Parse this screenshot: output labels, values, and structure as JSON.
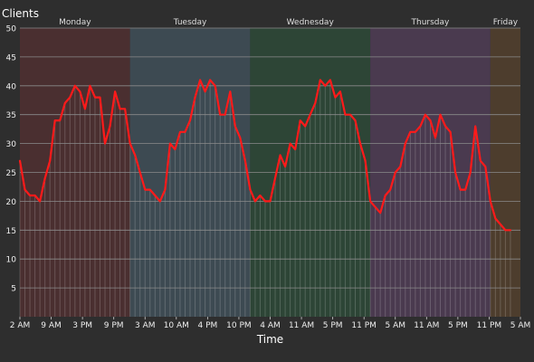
{
  "chart_data": {
    "type": "line",
    "title": "",
    "ylabel": "Clients",
    "xlabel": "Time",
    "ylim": [
      0,
      50
    ],
    "yticks": [
      5,
      10,
      15,
      20,
      25,
      30,
      35,
      40,
      45,
      50
    ],
    "x_tick_step_hours": 7,
    "x_tick_labels": [
      "2 AM",
      "9 AM",
      "3 PM",
      "9 PM",
      "3 AM",
      "10 AM",
      "4 PM",
      "10 PM",
      "4 AM",
      "11 AM",
      "5 PM",
      "11 PM",
      "5 AM",
      "11 AM",
      "5 PM",
      "11 PM",
      "5 AM"
    ],
    "grid": true,
    "days": [
      {
        "label": "Monday",
        "start": 0,
        "end": 22,
        "color": "#4a2f30"
      },
      {
        "label": "Tuesday",
        "start": 22,
        "end": 46,
        "color": "#3d4a52"
      },
      {
        "label": "Wednesday",
        "start": 46,
        "end": 70,
        "color": "#2d4536"
      },
      {
        "label": "Thursday",
        "start": 70,
        "end": 94,
        "color": "#4a3a4f"
      },
      {
        "label": "Friday",
        "start": 94,
        "end": 100,
        "color": "#4d3d2d"
      }
    ],
    "series": [
      {
        "color": "#ff1a1a",
        "points": [
          [
            0,
            27
          ],
          [
            1,
            22
          ],
          [
            2,
            21
          ],
          [
            3,
            21
          ],
          [
            4,
            20
          ],
          [
            5,
            24
          ],
          [
            6,
            27
          ],
          [
            7,
            34
          ],
          [
            8,
            34
          ],
          [
            9,
            37
          ],
          [
            10,
            38
          ],
          [
            11,
            40
          ],
          [
            12,
            39
          ],
          [
            13,
            36
          ],
          [
            14,
            40
          ],
          [
            15,
            38
          ],
          [
            16,
            38
          ],
          [
            17,
            30
          ],
          [
            18,
            33
          ],
          [
            19,
            39
          ],
          [
            20,
            36
          ],
          [
            21,
            36
          ],
          [
            22,
            30
          ],
          [
            23,
            28
          ],
          [
            24,
            25
          ],
          [
            25,
            22
          ],
          [
            26,
            22
          ],
          [
            27,
            21
          ],
          [
            28,
            20
          ],
          [
            29,
            22
          ],
          [
            30,
            30
          ],
          [
            31,
            29
          ],
          [
            32,
            32
          ],
          [
            33,
            32
          ],
          [
            34,
            34
          ],
          [
            35,
            38
          ],
          [
            36,
            41
          ],
          [
            37,
            39
          ],
          [
            38,
            41
          ],
          [
            39,
            40
          ],
          [
            40,
            35
          ],
          [
            41,
            35
          ],
          [
            42,
            39
          ],
          [
            43,
            33
          ],
          [
            44,
            31
          ],
          [
            45,
            27
          ],
          [
            46,
            22
          ],
          [
            47,
            20
          ],
          [
            48,
            21
          ],
          [
            49,
            20
          ],
          [
            50,
            20
          ],
          [
            51,
            24
          ],
          [
            52,
            28
          ],
          [
            53,
            26
          ],
          [
            54,
            30
          ],
          [
            55,
            29
          ],
          [
            56,
            34
          ],
          [
            57,
            33
          ],
          [
            58,
            35
          ],
          [
            59,
            37
          ],
          [
            60,
            41
          ],
          [
            61,
            40
          ],
          [
            62,
            41
          ],
          [
            63,
            38
          ],
          [
            64,
            39
          ],
          [
            65,
            35
          ],
          [
            66,
            35
          ],
          [
            67,
            34
          ],
          [
            68,
            30
          ],
          [
            69,
            27
          ],
          [
            70,
            20
          ],
          [
            71,
            19
          ],
          [
            72,
            18
          ],
          [
            73,
            21
          ],
          [
            74,
            22
          ],
          [
            75,
            25
          ],
          [
            76,
            26
          ],
          [
            77,
            30
          ],
          [
            78,
            32
          ],
          [
            79,
            32
          ],
          [
            80,
            33
          ],
          [
            81,
            35
          ],
          [
            82,
            34
          ],
          [
            83,
            31
          ],
          [
            84,
            35
          ],
          [
            85,
            33
          ],
          [
            86,
            32
          ],
          [
            87,
            25
          ],
          [
            88,
            22
          ],
          [
            89,
            22
          ],
          [
            90,
            25
          ],
          [
            91,
            33
          ],
          [
            92,
            27
          ],
          [
            93,
            26
          ],
          [
            94,
            20
          ],
          [
            95,
            17
          ],
          [
            96,
            16
          ],
          [
            97,
            15
          ],
          [
            98,
            15
          ]
        ]
      }
    ]
  }
}
